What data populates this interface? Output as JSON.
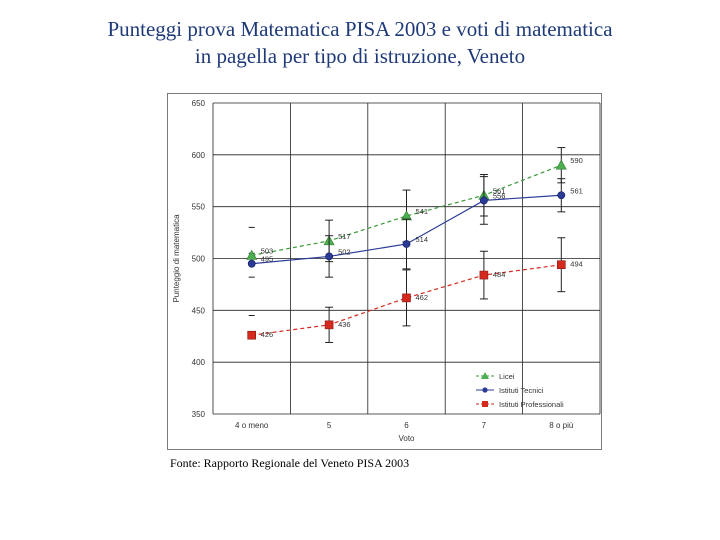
{
  "title": {
    "line1": "Punteggi prova Matematica PISA 2003 e voti di matematica",
    "line2": "in pagella per tipo di istruzione, Veneto"
  },
  "source": "Fonte: Rapporto Regionale del Veneto PISA 2003",
  "chart_data": {
    "type": "line",
    "title": "",
    "xlabel": "Voto",
    "ylabel": "Punteggio di matematica",
    "categories": [
      "4 o meno",
      "5",
      "6",
      "7",
      "8 o più"
    ],
    "ylim": [
      350,
      650
    ],
    "yticks": [
      350,
      400,
      450,
      500,
      550,
      600,
      650
    ],
    "grid": true,
    "legend_position": "bottom-right",
    "series": [
      {
        "name": "Licei",
        "color": "#3a9a3a",
        "marker": "triangle",
        "dashed": true,
        "values": [
          503,
          517,
          541,
          561,
          590
        ],
        "labels": [
          "503",
          "517",
          "541",
          "561",
          "590"
        ],
        "errors": [
          null,
          20,
          25,
          20,
          17
        ]
      },
      {
        "name": "Istituti Tecnici",
        "color": "#2b3b95",
        "marker": "circle",
        "dashed": false,
        "values": [
          495,
          502,
          514,
          556,
          561
        ],
        "labels": [
          "495",
          "502",
          "514",
          "556",
          "561"
        ],
        "errors": [
          null,
          20,
          24,
          23,
          16
        ]
      },
      {
        "name": "Istituti Professionali",
        "color": "#d42a1e",
        "marker": "square",
        "dashed": true,
        "values": [
          426,
          436,
          462,
          484,
          494
        ],
        "labels": [
          "426",
          "436",
          "462",
          "484",
          "494"
        ],
        "errors": [
          null,
          17,
          27,
          23,
          26
        ]
      }
    ]
  }
}
